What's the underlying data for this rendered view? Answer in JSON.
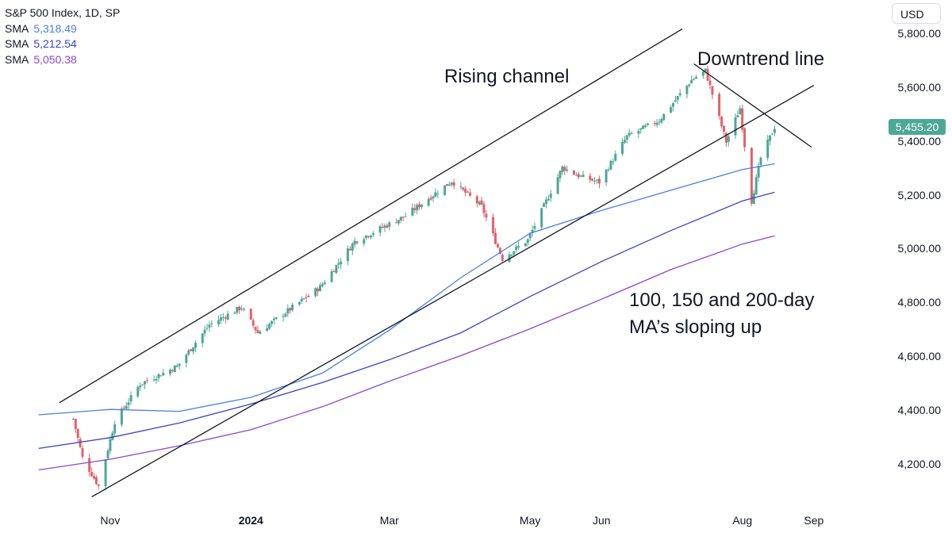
{
  "legend": {
    "title": "S&P 500 Index, 1D, SP",
    "sma": [
      {
        "label": "SMA",
        "value": "5,318.49",
        "color": "#4a7dea"
      },
      {
        "label": "SMA",
        "value": "5,212.54",
        "color": "#3943cc"
      },
      {
        "label": "SMA",
        "value": "5,050.38",
        "color": "#8a46d6"
      }
    ]
  },
  "currency_button": "USD",
  "price_tag": {
    "value": "5,455.20",
    "color": "#4da796"
  },
  "colors": {
    "up": "#4da796",
    "down": "#e0626b",
    "trendline": "#131722"
  },
  "chart_data": {
    "type": "candlestick",
    "title": "S&P 500 Index, 1D, SP",
    "x_axis": {
      "tick_labels": [
        "Nov",
        "2024",
        "Mar",
        "May",
        "Jun",
        "Aug",
        "Sep"
      ],
      "tick_dates": [
        "2023-11-01",
        "2024-01-01",
        "2024-03-01",
        "2024-05-01",
        "2024-06-01",
        "2024-08-01",
        "2024-09-01"
      ],
      "range": [
        "2023-09-28",
        "2024-09-30"
      ]
    },
    "y_axis": {
      "tick_labels": [
        "4,200.00",
        "4,400.00",
        "4,600.00",
        "4,800.00",
        "5,000.00",
        "5,200.00",
        "5,400.00",
        "5,600.00",
        "5,800.00"
      ],
      "range": [
        4040,
        5830
      ],
      "side": "right"
    },
    "last_price": 5455.2,
    "price_anchors": [
      [
        "2023-10-16",
        4370
      ],
      [
        "2023-10-20",
        4225
      ],
      [
        "2023-10-27",
        4120
      ],
      [
        "2023-11-03",
        4360
      ],
      [
        "2023-11-14",
        4500
      ],
      [
        "2023-11-30",
        4565
      ],
      [
        "2023-12-14",
        4720
      ],
      [
        "2023-12-28",
        4785
      ],
      [
        "2024-01-04",
        4690
      ],
      [
        "2024-01-31",
        4860
      ],
      [
        "2024-02-15",
        5030
      ],
      [
        "2024-03-08",
        5125
      ],
      [
        "2024-03-28",
        5254
      ],
      [
        "2024-04-10",
        5160
      ],
      [
        "2024-04-19",
        4965
      ],
      [
        "2024-04-30",
        5035
      ],
      [
        "2024-05-15",
        5305
      ],
      [
        "2024-05-23",
        5270
      ],
      [
        "2024-05-31",
        5250
      ],
      [
        "2024-06-12",
        5420
      ],
      [
        "2024-06-26",
        5480
      ],
      [
        "2024-07-10",
        5630
      ],
      [
        "2024-07-16",
        5665
      ],
      [
        "2024-07-25",
        5400
      ],
      [
        "2024-07-31",
        5525
      ],
      [
        "2024-08-05",
        5180
      ],
      [
        "2024-08-09",
        5340
      ],
      [
        "2024-08-15",
        5455
      ]
    ],
    "series": [
      {
        "name": "SMA",
        "period": "100-day",
        "value": "5,318.49",
        "color": "#4a7dea",
        "points": [
          [
            "2023-10-01",
            4385
          ],
          [
            "2023-11-01",
            4405
          ],
          [
            "2023-12-01",
            4398
          ],
          [
            "2024-01-01",
            4450
          ],
          [
            "2024-02-01",
            4540
          ],
          [
            "2024-03-01",
            4700
          ],
          [
            "2024-04-01",
            4895
          ],
          [
            "2024-05-01",
            5060
          ],
          [
            "2024-06-01",
            5145
          ],
          [
            "2024-07-01",
            5220
          ],
          [
            "2024-08-01",
            5297
          ],
          [
            "2024-08-15",
            5318.49
          ]
        ]
      },
      {
        "name": "SMA",
        "period": "150-day",
        "value": "5,212.54",
        "color": "#3943cc",
        "points": [
          [
            "2023-10-01",
            4260
          ],
          [
            "2023-11-01",
            4300
          ],
          [
            "2023-12-01",
            4355
          ],
          [
            "2024-01-01",
            4425
          ],
          [
            "2024-02-01",
            4505
          ],
          [
            "2024-03-01",
            4590
          ],
          [
            "2024-04-01",
            4690
          ],
          [
            "2024-05-01",
            4825
          ],
          [
            "2024-06-01",
            4955
          ],
          [
            "2024-07-01",
            5070
          ],
          [
            "2024-08-01",
            5180
          ],
          [
            "2024-08-15",
            5212.54
          ]
        ]
      },
      {
        "name": "SMA",
        "period": "200-day",
        "value": "5,050.38",
        "color": "#8a46d6",
        "points": [
          [
            "2023-10-01",
            4180
          ],
          [
            "2023-11-01",
            4220
          ],
          [
            "2023-12-01",
            4270
          ],
          [
            "2024-01-01",
            4330
          ],
          [
            "2024-02-01",
            4415
          ],
          [
            "2024-03-01",
            4510
          ],
          [
            "2024-04-01",
            4605
          ],
          [
            "2024-05-01",
            4705
          ],
          [
            "2024-06-01",
            4815
          ],
          [
            "2024-07-01",
            4925
          ],
          [
            "2024-08-01",
            5020
          ],
          [
            "2024-08-15",
            5050.38
          ]
        ]
      }
    ],
    "trendlines": [
      {
        "name": "rising-channel-upper",
        "from": [
          "2023-10-10",
          4430
        ],
        "to": [
          "2024-07-06",
          5820
        ]
      },
      {
        "name": "rising-channel-lower",
        "from": [
          "2023-10-24",
          4080
        ],
        "to": [
          "2024-09-01",
          5610
        ]
      },
      {
        "name": "downtrend-line",
        "from": [
          "2024-07-11",
          5690
        ],
        "to": [
          "2024-08-31",
          5380
        ]
      }
    ],
    "annotations": {
      "rising_channel": "Rising channel",
      "downtrend": "Downtrend line",
      "ma_line1": "100, 150 and 200-day",
      "ma_line2": "MA’s sloping up"
    }
  }
}
